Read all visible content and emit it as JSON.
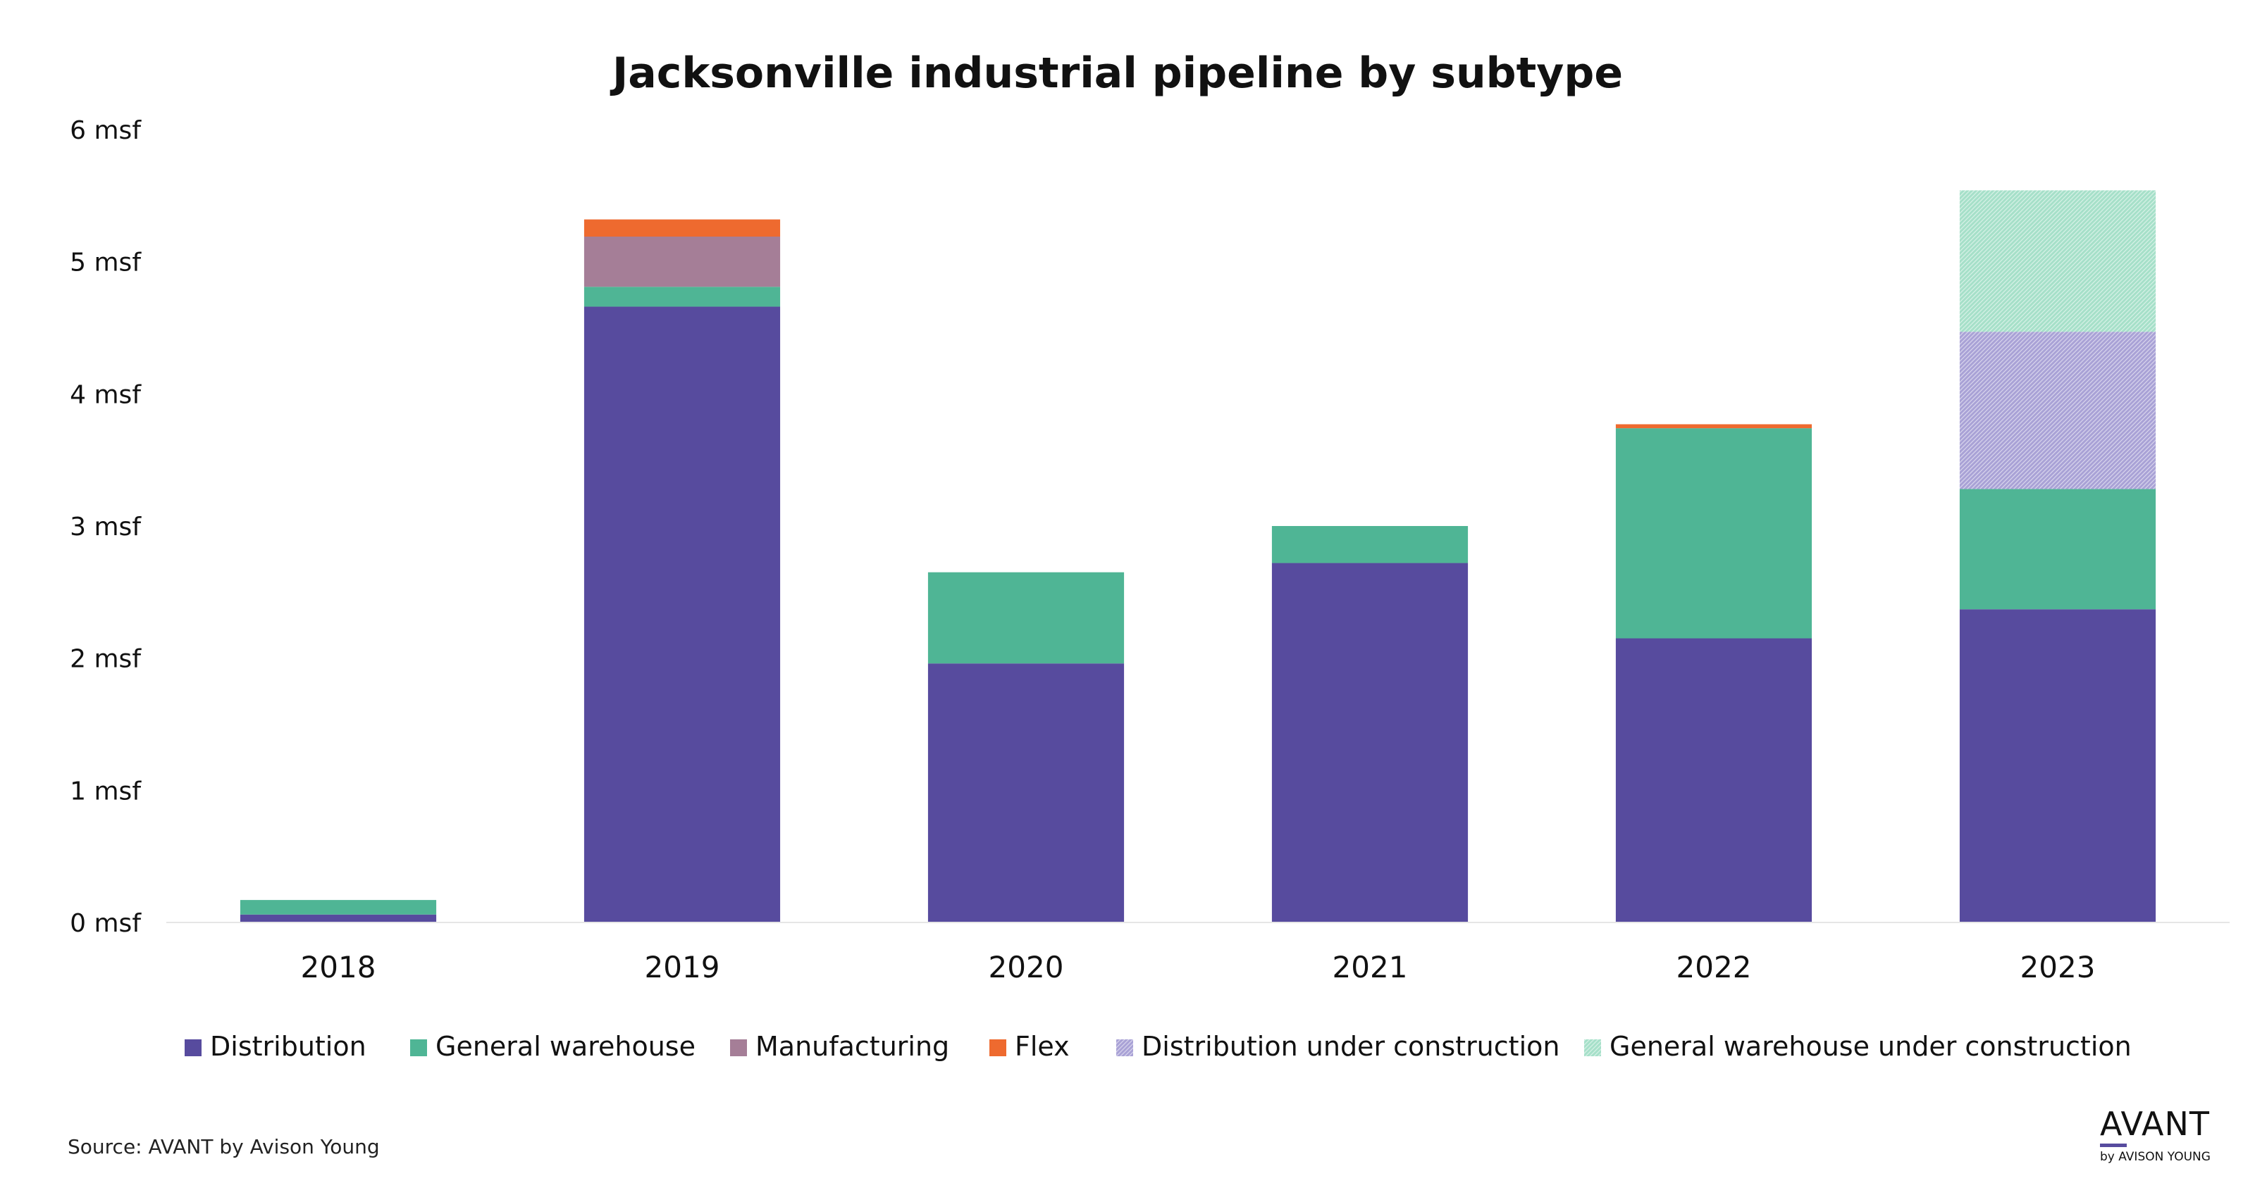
{
  "chart_data": {
    "type": "bar",
    "stacked": true,
    "title": "Jacksonville industrial pipeline by subtype",
    "categories": [
      "2018",
      "2019",
      "2020",
      "2021",
      "2022",
      "2023"
    ],
    "y_ticks": [
      "0 msf",
      "1 msf",
      "2 msf",
      "3 msf",
      "4 msf",
      "5 msf",
      "6 msf"
    ],
    "ylim": [
      0,
      6
    ],
    "grid": false,
    "legend_position": "bottom",
    "series": [
      {
        "name": "Distribution",
        "color": "#574b9e",
        "pattern": false,
        "values": [
          0.06,
          4.66,
          1.96,
          2.72,
          2.15,
          2.37
        ]
      },
      {
        "name": "General warehouse",
        "color": "#4fb595",
        "pattern": false,
        "values": [
          0.11,
          0.15,
          0.69,
          0.28,
          1.59,
          0.91
        ]
      },
      {
        "name": "Manufacturing",
        "color": "#a57e97",
        "pattern": false,
        "values": [
          0,
          0.38,
          0,
          0,
          0,
          0
        ]
      },
      {
        "name": "Flex",
        "color": "#ee6a2f",
        "pattern": false,
        "values": [
          0,
          0.13,
          0,
          0,
          0.03,
          0
        ]
      },
      {
        "name": "Distribution under construction",
        "color": "#a9a2d6",
        "pattern": true,
        "values": [
          0,
          0,
          0,
          0,
          0,
          1.19
        ]
      },
      {
        "name": "General warehouse under construction",
        "color": "#a6e0c9",
        "pattern": true,
        "values": [
          0,
          0,
          0,
          0,
          0,
          1.07
        ]
      }
    ]
  },
  "source": "Source: AVANT by Avison Young",
  "logo": {
    "main": "AVANT",
    "sub": "by AVISON YOUNG"
  }
}
